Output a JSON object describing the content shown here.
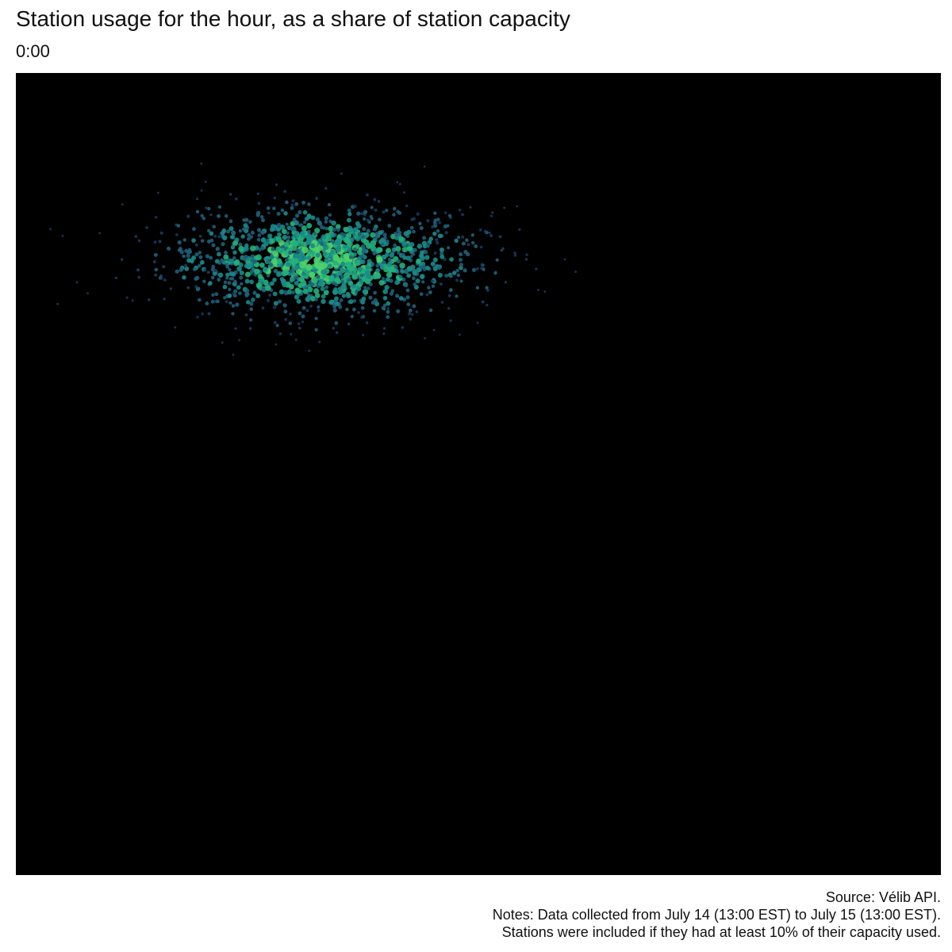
{
  "chart_data": {
    "type": "scatter",
    "title": "Station usage for the hour, as a share of station capacity",
    "subtitle": "0:00",
    "caption": {
      "source": "Source: Vélib API.",
      "notes_line1": "Notes: Data collected from July 14 (13:00 EST) to July 15 (13:00 EST).",
      "notes_line2": "Stations were included if they had at least 10% of their capacity used."
    },
    "background": "#000000",
    "palette": [
      "#1b3a5c",
      "#1f5f7a",
      "#1a8a8a",
      "#22b07c",
      "#4fd16c"
    ],
    "grid": false,
    "legend": "none",
    "axis_note": "x = longitude (deg), y = latitude (deg)",
    "xlim": [
      2.18,
      2.68
    ],
    "ylim": [
      48.46,
      48.98
    ],
    "cluster": {
      "center_lon": 2.345,
      "center_lat": 48.858,
      "spread_lon": 0.042,
      "spread_lat": 0.018,
      "station_count": 1400,
      "usage_range": [
        0.1,
        1.0
      ]
    }
  }
}
